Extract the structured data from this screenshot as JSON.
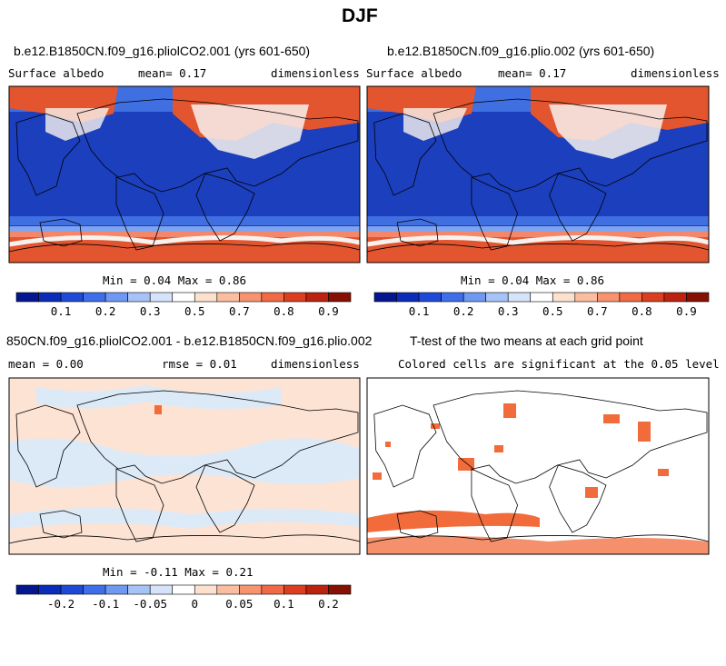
{
  "figure": {
    "title": "DJF"
  },
  "panels": [
    {
      "id": "p1",
      "title": "b.e12.B1850CN.f09_g16.pliolCO2.001 (yrs 601-650)",
      "left_label": "Surface albedo",
      "center_label": "mean=   0.17",
      "right_label": "dimensionless",
      "stats": "Min =   0.04 Max =   0.86"
    },
    {
      "id": "p2",
      "title": "b.e12.B1850CN.f09_g16.plio.002 (yrs 601-650)",
      "left_label": "Surface albedo",
      "center_label": "mean=   0.17",
      "right_label": "dimensionless",
      "stats": "Min =   0.04 Max =   0.86"
    },
    {
      "id": "p3",
      "title": "850CN.f09_g16.pliolCO2.001 - b.e12.B1850CN.f09_g16.plio.002",
      "left_label": "mean =   0.00",
      "center_label": "rmse =   0.01",
      "right_label": "dimensionless",
      "stats": "Min =  -0.11 Max =   0.21"
    },
    {
      "id": "p4",
      "title": "T-test of the two means at each grid point",
      "subtitle": "Colored cells are significant at the 0.05 level"
    }
  ],
  "colors": {
    "ocean_dark": "#1b3fbd",
    "ocean_mid": "#3f6fe0",
    "ice_white": "#f7f2ee",
    "ice_red": "#e3552f",
    "ice_orange": "#f4866a",
    "diff_peach": "#fde3d4",
    "diff_blue": "#dceaf8",
    "sig": "#f26b3b",
    "land_line": "#000000"
  },
  "colorbars": {
    "main": {
      "labels": [
        "0.1",
        "0.2",
        "0.3",
        "0.5",
        "0.7",
        "0.8",
        "0.9"
      ],
      "colors": [
        "#05178f",
        "#0b2cb8",
        "#1f4ad8",
        "#3e6eea",
        "#6e98f2",
        "#a6c3f7",
        "#d6e4fb",
        "#ffffff",
        "#fde1cf",
        "#fbbd9f",
        "#f7946f",
        "#ef6a45",
        "#dc3f1f",
        "#bb2210",
        "#861004"
      ]
    },
    "diff": {
      "labels": [
        "-0.2",
        "-0.1",
        "-0.05",
        "0",
        "0.05",
        "0.1",
        "0.2"
      ],
      "colors": [
        "#05178f",
        "#0b2cb8",
        "#1f4ad8",
        "#3e6eea",
        "#6e98f2",
        "#a6c3f7",
        "#d6e4fb",
        "#ffffff",
        "#fde1cf",
        "#fbbd9f",
        "#f7946f",
        "#ef6a45",
        "#dc3f1f",
        "#bb2210",
        "#861004"
      ]
    }
  },
  "chart_data": [
    {
      "type": "heatmap",
      "title": "b.e12.B1850CN.f09_g16.pliolCO2.001 (yrs 601-650)",
      "variable": "Surface albedo",
      "units": "dimensionless",
      "mean": 0.17,
      "min": 0.04,
      "max": 0.86,
      "colorbar_ticks": [
        0.1,
        0.2,
        0.3,
        0.5,
        0.7,
        0.8,
        0.9
      ]
    },
    {
      "type": "heatmap",
      "title": "b.e12.B1850CN.f09_g16.plio.002 (yrs 601-650)",
      "variable": "Surface albedo",
      "units": "dimensionless",
      "mean": 0.17,
      "min": 0.04,
      "max": 0.86,
      "colorbar_ticks": [
        0.1,
        0.2,
        0.3,
        0.5,
        0.7,
        0.8,
        0.9
      ]
    },
    {
      "type": "heatmap",
      "title": "850CN.f09_g16.pliolCO2.001 - b.e12.B1850CN.f09_g16.plio.002",
      "units": "dimensionless",
      "mean": 0.0,
      "rmse": 0.01,
      "min": -0.11,
      "max": 0.21,
      "colorbar_ticks": [
        -0.2,
        -0.1,
        -0.05,
        0,
        0.05,
        0.1,
        0.2
      ]
    },
    {
      "type": "heatmap",
      "title": "T-test of the two means at each grid point",
      "subtitle": "Colored cells are significant at the 0.05 level"
    }
  ]
}
